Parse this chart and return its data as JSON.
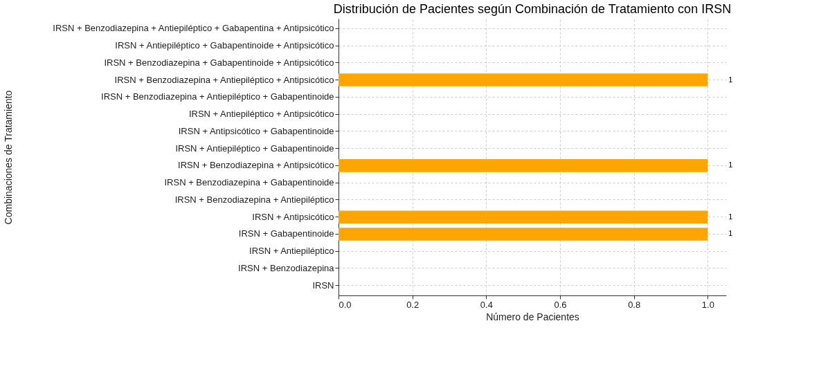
{
  "chart_data": {
    "type": "bar",
    "orientation": "horizontal",
    "title": "Distribución de Pacientes según Combinación de Tratamiento con IRSN",
    "xlabel": "Número de Pacientes",
    "ylabel": "Combinaciones de Tratamiento",
    "categories": [
      "IRSN + Benzodiazepina + Antiepiléptico + Gabapentina + Antipsicótico",
      "IRSN + Antiepiléptico + Gabapentinoide + Antipsicótico",
      "IRSN + Benzodiazepina + Gabapentinoide + Antipsicótico",
      "IRSN + Benzodiazepina + Antiepiléptico + Antipsicótico",
      "IRSN + Benzodiazepina + Antiepiléptico + Gabapentinoide",
      "IRSN + Antiepiléptico + Antipsicótico",
      "IRSN + Antipsicótico + Gabapentinoide",
      "IRSN + Antiepiléptico + Gabapentinoide",
      "IRSN + Benzodiazepina + Antipsicótico",
      "IRSN + Benzodiazepina + Gabapentinoide",
      "IRSN + Benzodiazepina + Antiepiléptico",
      "IRSN + Antipsicótico",
      "IRSN + Gabapentinoide",
      "IRSN + Antiepiléptico",
      "IRSN + Benzodiazepina",
      "IRSN"
    ],
    "values": [
      0,
      0,
      0,
      1,
      0,
      0,
      0,
      0,
      1,
      0,
      0,
      1,
      1,
      0,
      0,
      0
    ],
    "value_labels": [
      null,
      null,
      null,
      "1",
      null,
      null,
      null,
      null,
      "1",
      null,
      null,
      "1",
      "1",
      null,
      null,
      null
    ],
    "color": "#ffa500",
    "xlim": [
      0,
      1.05
    ],
    "xticks": [
      {
        "value": 0,
        "label": "0.0"
      },
      0.2,
      0.4,
      0.6,
      0.8,
      {
        "value": 1,
        "label": "1.0"
      }
    ],
    "grid": true
  }
}
